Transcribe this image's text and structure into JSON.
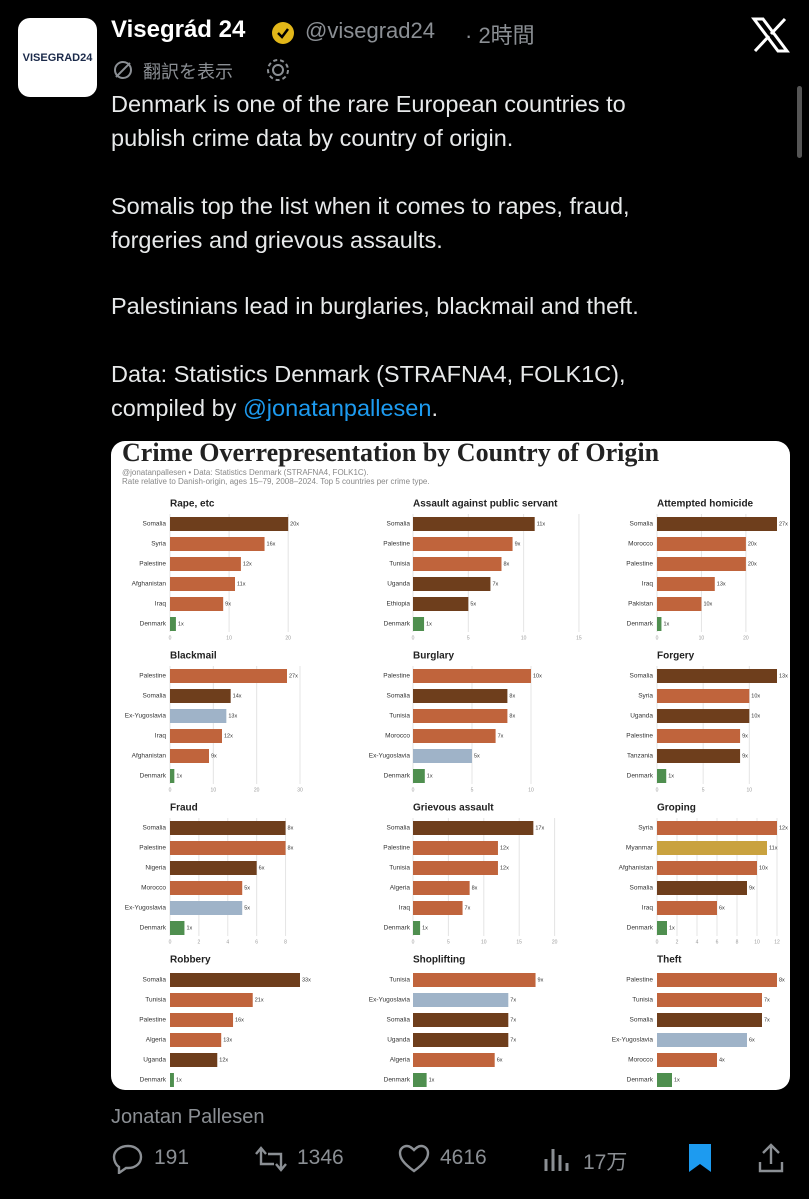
{
  "tweet": {
    "logo": "VISEGRAD24",
    "name": "Visegrád 24",
    "handle": "@visegrad24",
    "time": "· 2時間",
    "translate": "翻訳を表示",
    "paragraphs": [
      [
        "Denmark is one of the rare European countries to",
        "publish crime data by country of origin."
      ],
      [
        "Somalis top the list when it comes to rapes, fraud,",
        "forgeries and grievous assaults."
      ],
      [
        "Palestinians lead in burglaries, blackmail and theft."
      ],
      [
        "Data: Statistics Denmark (STRAFNA4, FOLK1C),"
      ]
    ],
    "link_prefix": "compiled by",
    "link": "@jonatanpallesen",
    "link_suffix": ".",
    "image_credit": "Jonatan Pallesen",
    "replies": "191",
    "reposts": "1346",
    "likes": "4616",
    "views": "17万"
  },
  "figure": {
    "title": "Crime Overrepresentation by Country of Origin",
    "credit": "@jonatanpallesen • Data: Statistics Denmark (STRAFNA4, FOLK1C).",
    "note": "Rate relative to Danish-origin, ages 15–79, 2008–2024. Top 5 countries per crime type."
  },
  "chart_data": [
    {
      "type": "bar",
      "orientation": "horizontal",
      "title": "Rape, etc",
      "categories": [
        "Somalia",
        "Syria",
        "Palestine",
        "Afghanistan",
        "Iraq",
        "Denmark"
      ],
      "values": [
        20,
        16,
        12,
        11,
        9,
        1
      ],
      "value_labels": [
        "20x",
        "16x",
        "12x",
        "11x",
        "9x",
        "1x"
      ],
      "colors": [
        "#6e3e1c",
        "#c0643c",
        "#c0643c",
        "#c0643c",
        "#c0643c",
        "#4f8f4f"
      ],
      "xlim": [
        0,
        22
      ],
      "xticks": [
        0,
        10,
        20
      ]
    },
    {
      "type": "bar",
      "orientation": "horizontal",
      "title": "Assault against public servant",
      "categories": [
        "Somalia",
        "Palestine",
        "Tunisia",
        "Uganda",
        "Ethiopia",
        "Denmark"
      ],
      "values": [
        11,
        9,
        8,
        7,
        5,
        1
      ],
      "value_labels": [
        "11x",
        "9x",
        "8x",
        "7x",
        "5x",
        "1x"
      ],
      "colors": [
        "#6e3e1c",
        "#c0643c",
        "#c0643c",
        "#6e3e1c",
        "#6e3e1c",
        "#4f8f4f"
      ],
      "xlim": [
        0,
        16
      ],
      "xticks": [
        0,
        5,
        10,
        15
      ]
    },
    {
      "type": "bar",
      "orientation": "horizontal",
      "title": "Attempted homicide",
      "categories": [
        "Somalia",
        "Morocco",
        "Palestine",
        "Iraq",
        "Pakistan",
        "Denmark"
      ],
      "values": [
        27,
        20,
        20,
        13,
        10,
        1
      ],
      "value_labels": [
        "27x",
        "20x",
        "20x",
        "13x",
        "10x",
        "1x"
      ],
      "colors": [
        "#6e3e1c",
        "#c0643c",
        "#c0643c",
        "#c0643c",
        "#c0643c",
        "#4f8f4f"
      ],
      "xlim": [
        0,
        27
      ],
      "xticks": [
        0,
        10,
        20
      ]
    },
    {
      "type": "bar",
      "orientation": "horizontal",
      "title": "Blackmail",
      "categories": [
        "Palestine",
        "Somalia",
        "Ex-Yugoslavia",
        "Iraq",
        "Afghanistan",
        "Denmark"
      ],
      "values": [
        27,
        14,
        13,
        12,
        9,
        1
      ],
      "value_labels": [
        "27x",
        "14x",
        "13x",
        "12x",
        "9x",
        "1x"
      ],
      "colors": [
        "#c0643c",
        "#6e3e1c",
        "#9fb3c8",
        "#c0643c",
        "#c0643c",
        "#4f8f4f"
      ],
      "xlim": [
        0,
        30
      ],
      "xticks": [
        0,
        10,
        20,
        30
      ]
    },
    {
      "type": "bar",
      "orientation": "horizontal",
      "title": "Burglary",
      "categories": [
        "Palestine",
        "Somalia",
        "Tunisia",
        "Morocco",
        "Ex-Yugoslavia",
        "Denmark"
      ],
      "values": [
        10,
        8,
        8,
        7,
        5,
        1
      ],
      "value_labels": [
        "10x",
        "8x",
        "8x",
        "7x",
        "5x",
        "1x"
      ],
      "colors": [
        "#c0643c",
        "#6e3e1c",
        "#c0643c",
        "#c0643c",
        "#9fb3c8",
        "#4f8f4f"
      ],
      "xlim": [
        0,
        15
      ],
      "xticks": [
        0,
        5,
        10
      ]
    },
    {
      "type": "bar",
      "orientation": "horizontal",
      "title": "Forgery",
      "categories": [
        "Somalia",
        "Syria",
        "Uganda",
        "Palestine",
        "Tanzania",
        "Denmark"
      ],
      "values": [
        13,
        10,
        10,
        9,
        9,
        1
      ],
      "value_labels": [
        "13x",
        "10x",
        "10x",
        "9x",
        "9x",
        "1x"
      ],
      "colors": [
        "#6e3e1c",
        "#c0643c",
        "#6e3e1c",
        "#c0643c",
        "#6e3e1c",
        "#4f8f4f"
      ],
      "xlim": [
        0,
        13
      ],
      "xticks": [
        0,
        5,
        10
      ]
    },
    {
      "type": "bar",
      "orientation": "horizontal",
      "title": "Fraud",
      "categories": [
        "Somalia",
        "Palestine",
        "Nigeria",
        "Morocco",
        "Ex-Yugoslavia",
        "Denmark"
      ],
      "values": [
        8,
        8,
        6,
        5,
        5,
        1
      ],
      "value_labels": [
        "8x",
        "8x",
        "6x",
        "5x",
        "5x",
        "1x"
      ],
      "colors": [
        "#6e3e1c",
        "#c0643c",
        "#6e3e1c",
        "#c0643c",
        "#9fb3c8",
        "#4f8f4f"
      ],
      "xlim": [
        0,
        9
      ],
      "xticks": [
        0,
        2,
        4,
        6,
        8
      ]
    },
    {
      "type": "bar",
      "orientation": "horizontal",
      "title": "Grievous assault",
      "categories": [
        "Somalia",
        "Palestine",
        "Tunisia",
        "Algeria",
        "Iraq",
        "Denmark"
      ],
      "values": [
        17,
        12,
        12,
        8,
        7,
        1
      ],
      "value_labels": [
        "17x",
        "12x",
        "12x",
        "8x",
        "7x",
        "1x"
      ],
      "colors": [
        "#6e3e1c",
        "#c0643c",
        "#c0643c",
        "#c0643c",
        "#c0643c",
        "#4f8f4f"
      ],
      "xlim": [
        0,
        25
      ],
      "xticks": [
        0,
        5,
        10,
        15,
        20
      ]
    },
    {
      "type": "bar",
      "orientation": "horizontal",
      "title": "Groping",
      "categories": [
        "Syria",
        "Myanmar",
        "Afghanistan",
        "Somalia",
        "Iraq",
        "Denmark"
      ],
      "values": [
        12,
        11,
        10,
        9,
        6,
        1
      ],
      "value_labels": [
        "12x",
        "11x",
        "10x",
        "9x",
        "6x",
        "1x"
      ],
      "colors": [
        "#c0643c",
        "#c9a23f",
        "#c0643c",
        "#6e3e1c",
        "#c0643c",
        "#4f8f4f"
      ],
      "xlim": [
        0,
        12
      ],
      "xticks": [
        0,
        2,
        4,
        6,
        8,
        10,
        12
      ]
    },
    {
      "type": "bar",
      "orientation": "horizontal",
      "title": "Robbery",
      "categories": [
        "Somalia",
        "Tunisia",
        "Palestine",
        "Algeria",
        "Uganda",
        "Denmark"
      ],
      "values": [
        33,
        21,
        16,
        13,
        12,
        1
      ],
      "value_labels": [
        "33x",
        "21x",
        "16x",
        "13x",
        "12x",
        "1x"
      ],
      "colors": [
        "#6e3e1c",
        "#c0643c",
        "#c0643c",
        "#c0643c",
        "#6e3e1c",
        "#4f8f4f"
      ],
      "xlim": [
        0,
        33
      ]
    },
    {
      "type": "bar",
      "orientation": "horizontal",
      "title": "Shoplifting",
      "categories": [
        "Tunisia",
        "Ex-Yugoslavia",
        "Somalia",
        "Uganda",
        "Algeria",
        "Denmark"
      ],
      "values": [
        9,
        7,
        7,
        7,
        6,
        1
      ],
      "value_labels": [
        "9x",
        "7x",
        "7x",
        "7x",
        "6x",
        "1x"
      ],
      "colors": [
        "#c0643c",
        "#9fb3c8",
        "#6e3e1c",
        "#6e3e1c",
        "#c0643c",
        "#4f8f4f"
      ],
      "xlim": [
        0,
        13
      ]
    },
    {
      "type": "bar",
      "orientation": "horizontal",
      "title": "Theft",
      "categories": [
        "Palestine",
        "Tunisia",
        "Somalia",
        "Ex-Yugoslavia",
        "Morocco",
        "Denmark"
      ],
      "values": [
        8,
        7,
        7,
        6,
        4,
        1
      ],
      "value_labels": [
        "8x",
        "7x",
        "7x",
        "6x",
        "4x",
        "1x"
      ],
      "colors": [
        "#c0643c",
        "#c0643c",
        "#6e3e1c",
        "#9fb3c8",
        "#c0643c",
        "#4f8f4f"
      ],
      "xlim": [
        0,
        8
      ]
    }
  ]
}
